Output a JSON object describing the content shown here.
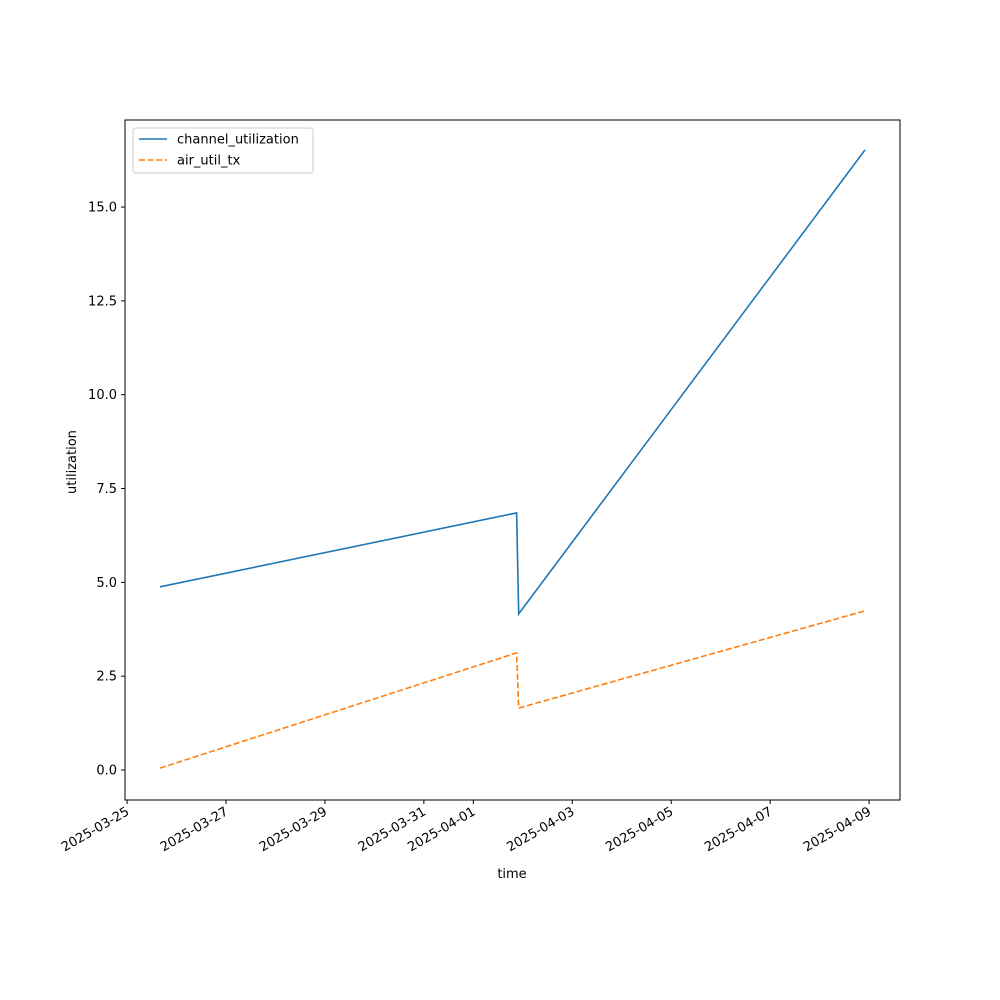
{
  "chart_data": {
    "type": "line",
    "xlabel": "time",
    "ylabel": "utilization",
    "x": [
      "2025-03-25T16:00",
      "2025-04-01T21:00",
      "2025-04-01T22:00",
      "2025-04-08T22:00"
    ],
    "series": [
      {
        "name": "channel_utilization",
        "color": "#1f77b4",
        "dash": false,
        "values": [
          4.88,
          6.85,
          4.16,
          16.52
        ]
      },
      {
        "name": "air_util_tx",
        "color": "#ff7f0e",
        "dash": true,
        "values": [
          0.05,
          3.12,
          1.65,
          4.24
        ]
      }
    ],
    "xlim": [
      "2025-03-24T23:00",
      "2025-04-09T15:00"
    ],
    "xticks": [
      "2025-03-25",
      "2025-03-27",
      "2025-03-29",
      "2025-03-31",
      "2025-04-01",
      "2025-04-03",
      "2025-04-05",
      "2025-04-07",
      "2025-04-09"
    ],
    "ylim": [
      -0.8,
      17.32
    ],
    "yticks": [
      {
        "value": 0,
        "label": "0.0"
      },
      {
        "value": 2.5,
        "label": "2.5"
      },
      {
        "value": 5,
        "label": "5.0"
      },
      {
        "value": 7.5,
        "label": "7.5"
      },
      {
        "value": 10,
        "label": "10.0"
      },
      {
        "value": 12.5,
        "label": "12.5"
      },
      {
        "value": 15,
        "label": "15.0"
      }
    ],
    "legend": "upper left",
    "grid": false
  }
}
